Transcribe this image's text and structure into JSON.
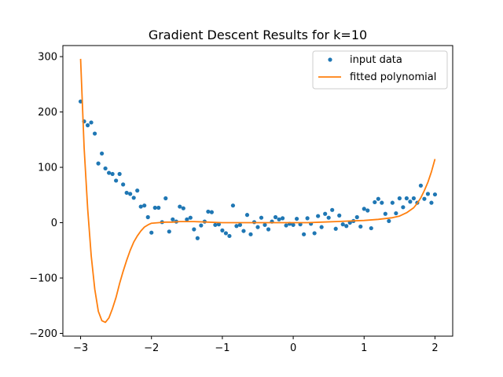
{
  "chart_data": {
    "type": "scatter",
    "title": "Gradient Descent Results for k=10",
    "xlabel": "",
    "ylabel": "",
    "xlim": [
      -3.25,
      2.25
    ],
    "ylim": [
      -205,
      320
    ],
    "xticks": [
      -3,
      -2,
      -1,
      0,
      1,
      2
    ],
    "yticks": [
      -200,
      -100,
      0,
      100,
      200,
      300
    ],
    "xtick_labels": [
      "−3",
      "−2",
      "−1",
      "0",
      "1",
      "2"
    ],
    "ytick_labels": [
      "−200",
      "−100",
      "0",
      "100",
      "200",
      "300"
    ],
    "legend": {
      "position": "top-right",
      "entries": [
        "input data",
        "fitted polynomial"
      ]
    },
    "colors": {
      "points": "#1f77b4",
      "line": "#ff7f0e"
    },
    "series": [
      {
        "name": "input data",
        "type": "scatter",
        "x": [
          -3.0,
          -2.95,
          -2.9,
          -2.85,
          -2.8,
          -2.75,
          -2.7,
          -2.65,
          -2.6,
          -2.55,
          -2.5,
          -2.45,
          -2.4,
          -2.35,
          -2.3,
          -2.25,
          -2.2,
          -2.15,
          -2.1,
          -2.05,
          -2.0,
          -1.95,
          -1.9,
          -1.85,
          -1.8,
          -1.75,
          -1.7,
          -1.65,
          -1.6,
          -1.55,
          -1.5,
          -1.45,
          -1.4,
          -1.35,
          -1.3,
          -1.25,
          -1.2,
          -1.15,
          -1.1,
          -1.05,
          -1.0,
          -0.95,
          -0.9,
          -0.85,
          -0.8,
          -0.75,
          -0.7,
          -0.65,
          -0.6,
          -0.55,
          -0.5,
          -0.45,
          -0.4,
          -0.35,
          -0.3,
          -0.25,
          -0.2,
          -0.15,
          -0.1,
          -0.05,
          0.0,
          0.05,
          0.1,
          0.15,
          0.2,
          0.25,
          0.3,
          0.35,
          0.4,
          0.45,
          0.5,
          0.55,
          0.6,
          0.65,
          0.7,
          0.75,
          0.8,
          0.85,
          0.9,
          0.95,
          1.0,
          1.05,
          1.1,
          1.15,
          1.2,
          1.25,
          1.3,
          1.35,
          1.4,
          1.45,
          1.5,
          1.55,
          1.6,
          1.65,
          1.7,
          1.75,
          1.8,
          1.85,
          1.9,
          1.95,
          2.0
        ],
        "y": [
          219,
          183,
          176,
          181,
          161,
          107,
          125,
          98,
          90,
          88,
          76,
          88,
          69,
          54,
          52,
          45,
          58,
          29,
          31,
          10,
          -18,
          27,
          27,
          1,
          44,
          -16,
          6,
          2,
          29,
          26,
          6,
          9,
          -12,
          -28,
          -5,
          2,
          20,
          19,
          -4,
          -3,
          -14,
          -19,
          -24,
          31,
          -6,
          -4,
          -15,
          14,
          -21,
          1,
          -8,
          9,
          -4,
          -12,
          2,
          10,
          6,
          8,
          -5,
          -2,
          -4,
          7,
          -3,
          -21,
          8,
          -2,
          -19,
          12,
          -8,
          16,
          9,
          23,
          -11,
          13,
          -3,
          -6,
          0,
          3,
          10,
          -7,
          25,
          22,
          -10,
          37,
          43,
          36,
          16,
          3,
          36,
          17,
          44,
          28,
          44,
          38,
          44,
          36,
          67,
          43,
          52,
          36,
          51
        ]
      },
      {
        "name": "fitted polynomial",
        "type": "line",
        "x": [
          -3.0,
          -2.95,
          -2.9,
          -2.85,
          -2.8,
          -2.75,
          -2.7,
          -2.65,
          -2.6,
          -2.55,
          -2.5,
          -2.45,
          -2.4,
          -2.35,
          -2.3,
          -2.25,
          -2.2,
          -2.15,
          -2.1,
          -2.05,
          -2.0,
          -1.9,
          -1.8,
          -1.7,
          -1.6,
          -1.5,
          -1.4,
          -1.2,
          -1.0,
          -0.8,
          -0.6,
          -0.4,
          -0.2,
          0.0,
          0.2,
          0.4,
          0.6,
          0.8,
          1.0,
          1.2,
          1.4,
          1.5,
          1.6,
          1.7,
          1.75,
          1.8,
          1.85,
          1.9,
          1.95,
          2.0
        ],
        "y": [
          296,
          135,
          25,
          -60,
          -120,
          -160,
          -177,
          -180,
          -172,
          -155,
          -135,
          -110,
          -88,
          -68,
          -50,
          -35,
          -24,
          -15,
          -8,
          -4,
          -1,
          0,
          1,
          1,
          2,
          2,
          2,
          1,
          0,
          0,
          0,
          0,
          0,
          0,
          0,
          1,
          2,
          3,
          4,
          6,
          9,
          12,
          18,
          27,
          35,
          45,
          58,
          73,
          92,
          115
        ]
      }
    ]
  }
}
